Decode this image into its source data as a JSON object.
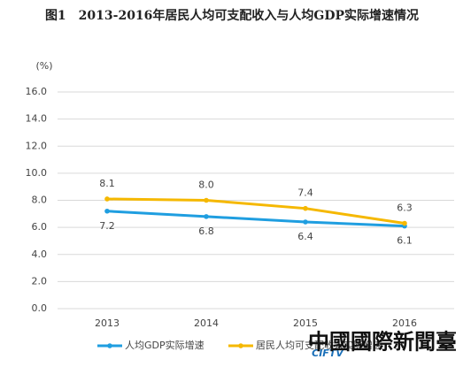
{
  "chart_data": {
    "type": "line",
    "title": "图1　2013-2016年居民人均可支配收入与人均GDP实际增速情况",
    "y_unit": "(%)",
    "categories": [
      "2013",
      "2014",
      "2015",
      "2016"
    ],
    "series": [
      {
        "name": "人均GDP实际增速",
        "color": "#1f9ee0",
        "values": [
          7.2,
          6.8,
          6.4,
          6.1
        ],
        "value_labels": [
          "7.2",
          "6.8",
          "6.4",
          "6.1"
        ],
        "label_side": "below"
      },
      {
        "name": "居民人均可支配收入实际增速",
        "color": "#f5b800",
        "values": [
          8.1,
          8.0,
          7.4,
          6.3
        ],
        "value_labels": [
          "8.1",
          "8.0",
          "7.4",
          "6.3"
        ],
        "label_side": "above"
      }
    ],
    "ylim": [
      0,
      16
    ],
    "yticks": [
      {
        "value": 0,
        "label": "0.0"
      },
      {
        "value": 2,
        "label": "2.0"
      },
      {
        "value": 4,
        "label": "4.0"
      },
      {
        "value": 6,
        "label": "6.0"
      },
      {
        "value": 8,
        "label": "8.0"
      },
      {
        "value": 10,
        "label": "10.0"
      },
      {
        "value": 12,
        "label": "12.0"
      },
      {
        "value": 14,
        "label": "14.0"
      },
      {
        "value": 16,
        "label": "16.0"
      }
    ],
    "grid": true,
    "watermark": {
      "logo": "CIFTV",
      "text": "中國國際新聞臺"
    }
  }
}
